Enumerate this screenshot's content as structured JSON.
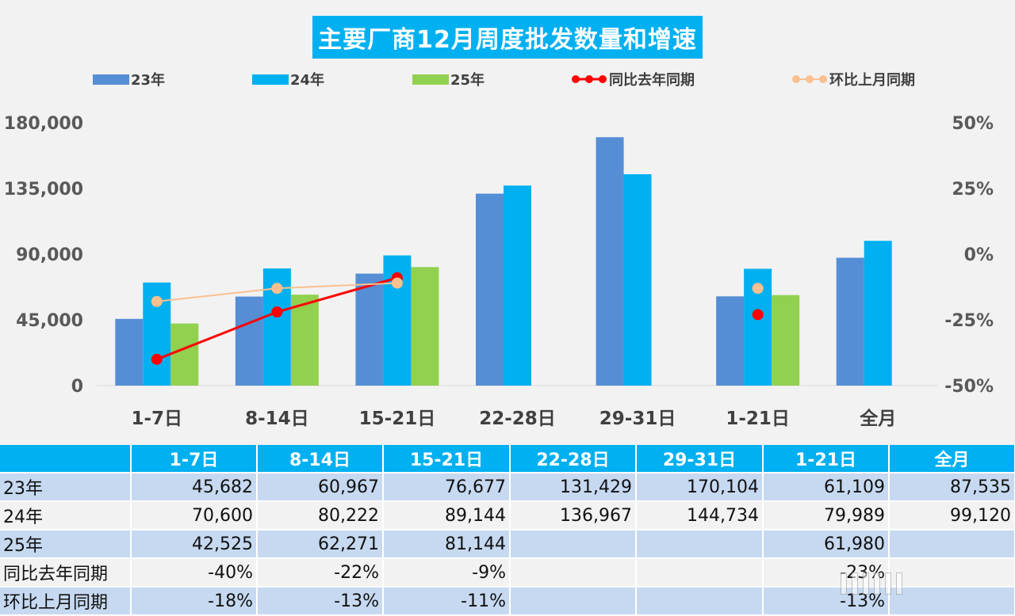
{
  "chart_data": {
    "type": "bar",
    "title": "主要厂商12月周度批发数量和增速",
    "categories": [
      "1-7日",
      "8-14日",
      "15-21日",
      "22-28日",
      "29-31日",
      "1-21日",
      "全月"
    ],
    "series": [
      {
        "name": "23年",
        "type": "bar",
        "color": "#558ed5",
        "values": [
          45682,
          60967,
          76677,
          131429,
          170104,
          61109,
          87535
        ]
      },
      {
        "name": "24年",
        "type": "bar",
        "color": "#00b0f0",
        "values": [
          70600,
          80222,
          89144,
          136967,
          144734,
          79989,
          99120
        ]
      },
      {
        "name": "25年",
        "type": "bar",
        "color": "#92d050",
        "values": [
          42525,
          62271,
          81144,
          null,
          null,
          61980,
          null
        ]
      },
      {
        "name": "同比去年同期",
        "type": "line",
        "axis": "right",
        "color": "#ff0000",
        "values": [
          -40,
          -22,
          -9,
          null,
          null,
          -23,
          null
        ]
      },
      {
        "name": "环比上月同期",
        "type": "line",
        "axis": "right",
        "color": "#fac090",
        "values": [
          -18,
          -13,
          -11,
          null,
          null,
          -13,
          null
        ]
      }
    ],
    "y_left": {
      "ticks": [
        "0",
        "45,000",
        "90,000",
        "135,000",
        "180,000"
      ],
      "ylim": [
        0,
        180000
      ]
    },
    "y_right": {
      "ticks": [
        "-50%",
        "-25%",
        "0%",
        "25%",
        "50%"
      ],
      "ylim": [
        -50,
        50
      ]
    }
  },
  "table": {
    "headers": [
      "",
      "1-7日",
      "8-14日",
      "15-21日",
      "22-28日",
      "29-31日",
      "1-21日",
      "全月"
    ],
    "rows": [
      {
        "label": "23年",
        "cells": [
          "45,682",
          "60,967",
          "76,677",
          "131,429",
          "170,104",
          "61,109",
          "87,535"
        ]
      },
      {
        "label": "24年",
        "cells": [
          "70,600",
          "80,222",
          "89,144",
          "136,967",
          "144,734",
          "79,989",
          "99,120"
        ]
      },
      {
        "label": "25年",
        "cells": [
          "42,525",
          "62,271",
          "81,144",
          "",
          "",
          "61,980",
          ""
        ]
      },
      {
        "label": "同比去年同期",
        "cells": [
          "-40%",
          "-22%",
          "-9%",
          "",
          "",
          "-23%",
          ""
        ]
      },
      {
        "label": "环比上月同期",
        "cells": [
          "-18%",
          "-13%",
          "-11%",
          "",
          "",
          "-13%",
          ""
        ]
      }
    ]
  }
}
